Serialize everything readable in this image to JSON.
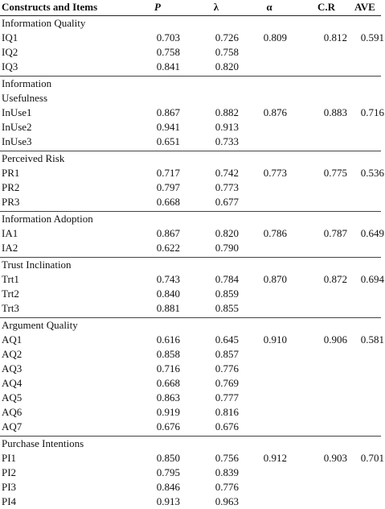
{
  "headers": [
    "Constructs and Items",
    "P",
    "λ",
    "α",
    "C.R",
    "AVE"
  ],
  "sections": [
    {
      "name_lines": [
        "Information Quality"
      ],
      "alpha": "0.809",
      "cr": "0.812",
      "ave": "0.591",
      "items": [
        {
          "id": "IQ1",
          "p": "0.703",
          "l": "0.726"
        },
        {
          "id": "IQ2",
          "p": "0.758",
          "l": "0.758"
        },
        {
          "id": "IQ3",
          "p": "0.841",
          "l": "0.820"
        }
      ]
    },
    {
      "name_lines": [
        "Information",
        "Usefulness"
      ],
      "alpha": "0.876",
      "cr": "0.883",
      "ave": "0.716",
      "items": [
        {
          "id": "InUse1",
          "p": "0.867",
          "l": "0.882"
        },
        {
          "id": "InUse2",
          "p": "0.941",
          "l": "0.913"
        },
        {
          "id": "InUse3",
          "p": "0.651",
          "l": "0.733"
        }
      ]
    },
    {
      "name_lines": [
        "Perceived Risk"
      ],
      "alpha": "0.773",
      "cr": "0.775",
      "ave": "0.536",
      "items": [
        {
          "id": "PR1",
          "p": "0.717",
          "l": "0.742"
        },
        {
          "id": "PR2",
          "p": "0.797",
          "l": "0.773"
        },
        {
          "id": "PR3",
          "p": "0.668",
          "l": "0.677"
        }
      ]
    },
    {
      "name_lines": [
        "Information Adoption"
      ],
      "alpha": "0.786",
      "cr": "0.787",
      "ave": "0.649",
      "items": [
        {
          "id": "IA1",
          "p": "0.867",
          "l": "0.820"
        },
        {
          "id": "IA2",
          "p": "0.622",
          "l": "0.790"
        }
      ]
    },
    {
      "name_lines": [
        "Trust Inclination"
      ],
      "alpha": "0.870",
      "cr": "0.872",
      "ave": "0.694",
      "items": [
        {
          "id": "Trt1",
          "p": "0.743",
          "l": "0.784"
        },
        {
          "id": "Trt2",
          "p": "0.840",
          "l": "0.859"
        },
        {
          "id": "Trt3",
          "p": "0.881",
          "l": "0.855"
        }
      ]
    },
    {
      "name_lines": [
        "Argument Quality"
      ],
      "alpha": "0.910",
      "cr": "0.906",
      "ave": "0.581",
      "items": [
        {
          "id": "AQ1",
          "p": "0.616",
          "l": "0.645"
        },
        {
          "id": "AQ2",
          "p": "0.858",
          "l": "0.857"
        },
        {
          "id": "AQ3",
          "p": "0.716",
          "l": "0.776"
        },
        {
          "id": "AQ4",
          "p": "0.668",
          "l": "0.769"
        },
        {
          "id": "AQ5",
          "p": "0.863",
          "l": "0.777"
        },
        {
          "id": "AQ6",
          "p": "0.919",
          "l": "0.816"
        },
        {
          "id": "AQ7",
          "p": "0.676",
          "l": "0.676"
        }
      ]
    },
    {
      "name_lines": [
        "Purchase Intentions"
      ],
      "alpha": "0.912",
      "cr": "0.903",
      "ave": "0.701",
      "items": [
        {
          "id": "PI1",
          "p": "0.850",
          "l": "0.756"
        },
        {
          "id": "PI2",
          "p": "0.795",
          "l": "0.839"
        },
        {
          "id": "PI3",
          "p": "0.846",
          "l": "0.776"
        },
        {
          "id": "PI4",
          "p": "0.913",
          "l": "0.963"
        }
      ]
    }
  ]
}
